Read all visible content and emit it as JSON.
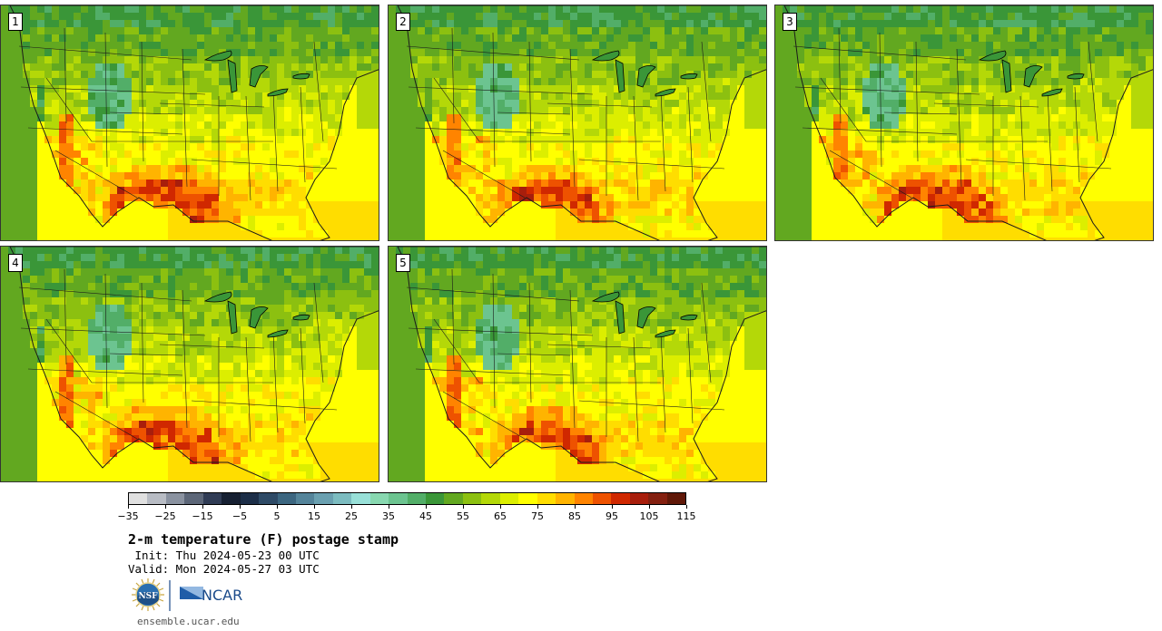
{
  "panels": [
    {
      "label": "1",
      "seed": 1,
      "heat": 1.15
    },
    {
      "label": "2",
      "seed": 2,
      "heat": 0.95
    },
    {
      "label": "3",
      "seed": 3,
      "heat": 1.05
    },
    {
      "label": "4",
      "seed": 4,
      "heat": 1.1
    },
    {
      "label": "5",
      "seed": 5,
      "heat": 0.9
    }
  ],
  "colorbar": {
    "colors": [
      "#e0e0e0",
      "#b8bcc4",
      "#8a92a0",
      "#5c6678",
      "#303c55",
      "#162032",
      "#1c2e48",
      "#2e4a66",
      "#3c6680",
      "#54849a",
      "#6aa0b0",
      "#7cbcc0",
      "#98e0d8",
      "#88d8b0",
      "#6cc490",
      "#52ae68",
      "#3a9638",
      "#62a820",
      "#8cc010",
      "#b4d808",
      "#dcee00",
      "#ffff00",
      "#ffdd00",
      "#ffb400",
      "#ff8400",
      "#ee5200",
      "#d02800",
      "#a81e0c",
      "#842010",
      "#601808"
    ],
    "tick_labels": [
      "−35",
      "−25",
      "−15",
      "−5",
      "5",
      "15",
      "25",
      "35",
      "45",
      "55",
      "65",
      "75",
      "85",
      "95",
      "105",
      "115"
    ]
  },
  "title": "2-m temperature (F) postage stamp",
  "init_line": " Init: Thu 2024-05-23 00 UTC",
  "valid_line": "Valid: Mon 2024-05-27 03 UTC",
  "logos": {
    "nsf": "NSF",
    "ncar": "NCAR"
  },
  "site": "ensemble.ucar.edu"
}
